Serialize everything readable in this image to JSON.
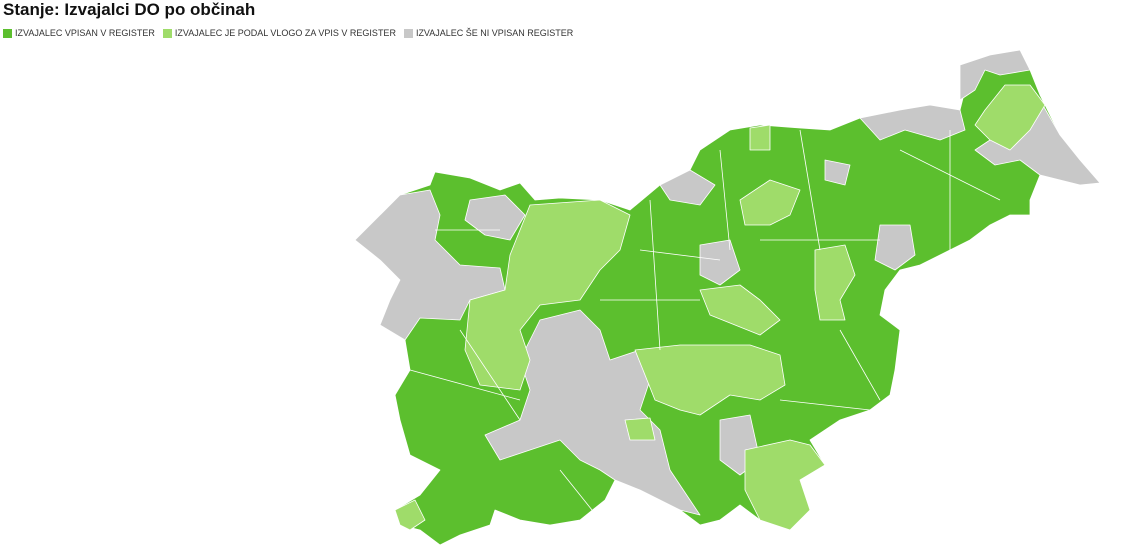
{
  "title": "Stanje: Izvajalci DO po občinah",
  "legend": [
    {
      "label": "IZVAJALEC VPISAN V REGISTER",
      "color": "#5cbf2e"
    },
    {
      "label": "IZVAJALEC JE PODAL VLOGO ZA VPIS V REGISTER",
      "color": "#9fdc6a"
    },
    {
      "label": "IZVAJALEC ŠE NI VPISAN REGISTER",
      "color": "#c8c8c8"
    }
  ]
}
